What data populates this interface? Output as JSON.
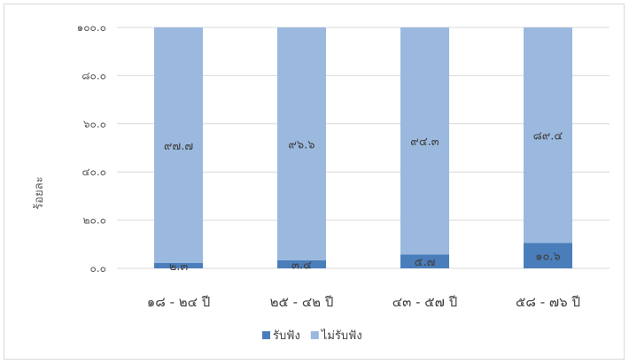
{
  "chart_data": {
    "type": "bar",
    "stacked": true,
    "percent": true,
    "categories": [
      "๑๘ - ๒๔ ปี",
      "๒๕ - ๔๒ ปี",
      "๔๓ - ๕๗ ปี",
      "๕๘ - ๗๖ ปี"
    ],
    "series": [
      {
        "name": "รับฟัง",
        "values": [
          2.3,
          3.4,
          5.7,
          10.6
        ],
        "labels": [
          "๒.๓",
          "๓.๔",
          "๕.๗",
          "๑๐.๖"
        ],
        "color": "#4a7ebb"
      },
      {
        "name": "ไม่รับฟัง",
        "values": [
          97.7,
          96.6,
          94.3,
          89.4
        ],
        "labels": [
          "๙๗.๗",
          "๙๖.๖",
          "๙๔.๓",
          "๘๙.๔"
        ],
        "color": "#9bb9df"
      }
    ],
    "ylabel": "ร้อยละ",
    "ylim": [
      0,
      100
    ],
    "yticks": [
      0,
      20,
      40,
      60,
      80,
      100
    ],
    "ytick_labels": [
      "๐.๐",
      "๒๐.๐",
      "๔๐.๐",
      "๖๐.๐",
      "๘๐.๐",
      "๑๐๐.๐"
    ],
    "grid": true,
    "legend": "bottom"
  }
}
